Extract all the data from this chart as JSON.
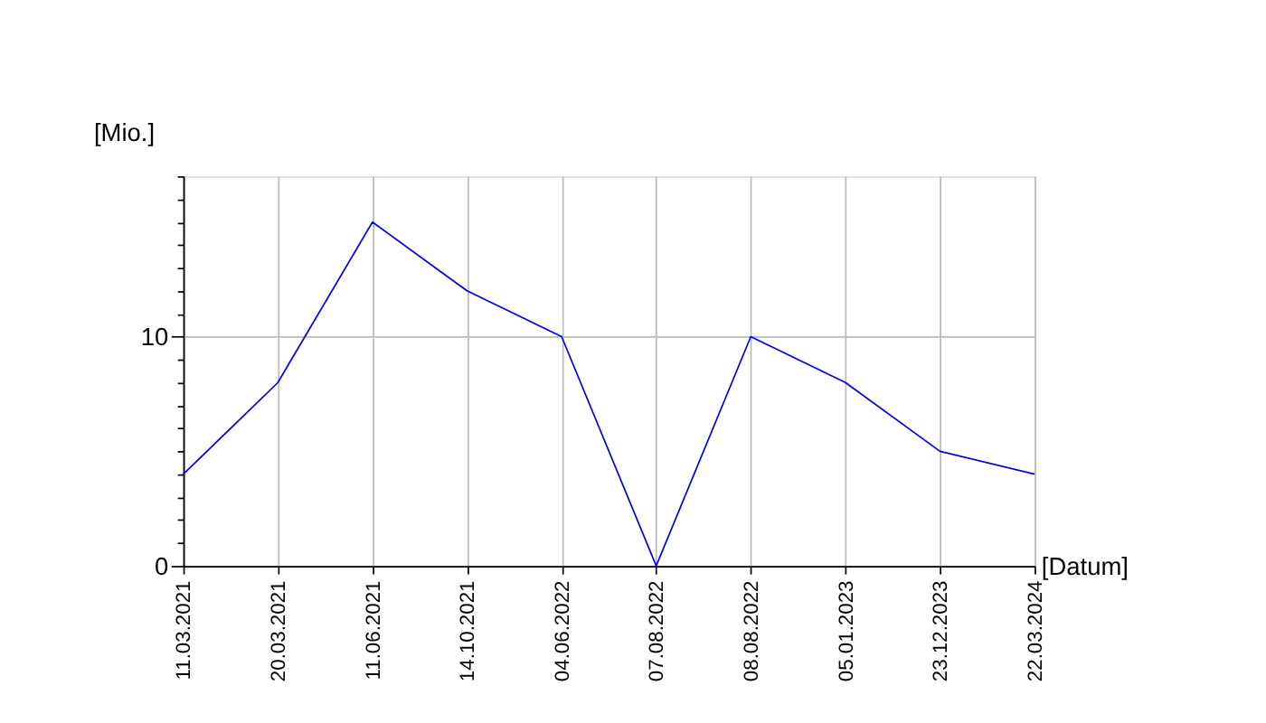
{
  "chart_data": {
    "type": "line",
    "xlabel": "[Datum]",
    "ylabel": "[Mio.]",
    "categories": [
      "11.03.2021",
      "20.03.2021",
      "11.06.2021",
      "14.10.2021",
      "04.06.2022",
      "07.08.2022",
      "08.08.2022",
      "05.01.2023",
      "23.12.2023",
      "22.03.2024"
    ],
    "series": [
      {
        "color": "#0000ff",
        "values": [
          4,
          8,
          15,
          12,
          10,
          0,
          10,
          8,
          5,
          4
        ]
      }
    ],
    "ylim": [
      0,
      17
    ],
    "yticks": [
      0,
      {
        "value": 1,
        "label": null
      },
      {
        "value": 2,
        "label": null
      },
      {
        "value": 3,
        "label": null
      },
      {
        "value": 4,
        "label": null
      },
      {
        "value": 5,
        "label": null
      },
      {
        "value": 6,
        "label": null
      },
      {
        "value": 7,
        "label": null
      },
      {
        "value": 8,
        "label": null
      },
      {
        "value": 9,
        "label": null
      },
      10,
      {
        "value": 11,
        "label": null
      },
      {
        "value": 12,
        "label": null
      },
      {
        "value": 13,
        "label": null
      },
      {
        "value": 14,
        "label": null
      },
      {
        "value": 15,
        "label": null
      },
      {
        "value": 16,
        "label": null
      },
      {
        "value": 17,
        "label": null
      }
    ],
    "grid": true,
    "marker": "none",
    "line_style": "solid",
    "legend": false
  }
}
